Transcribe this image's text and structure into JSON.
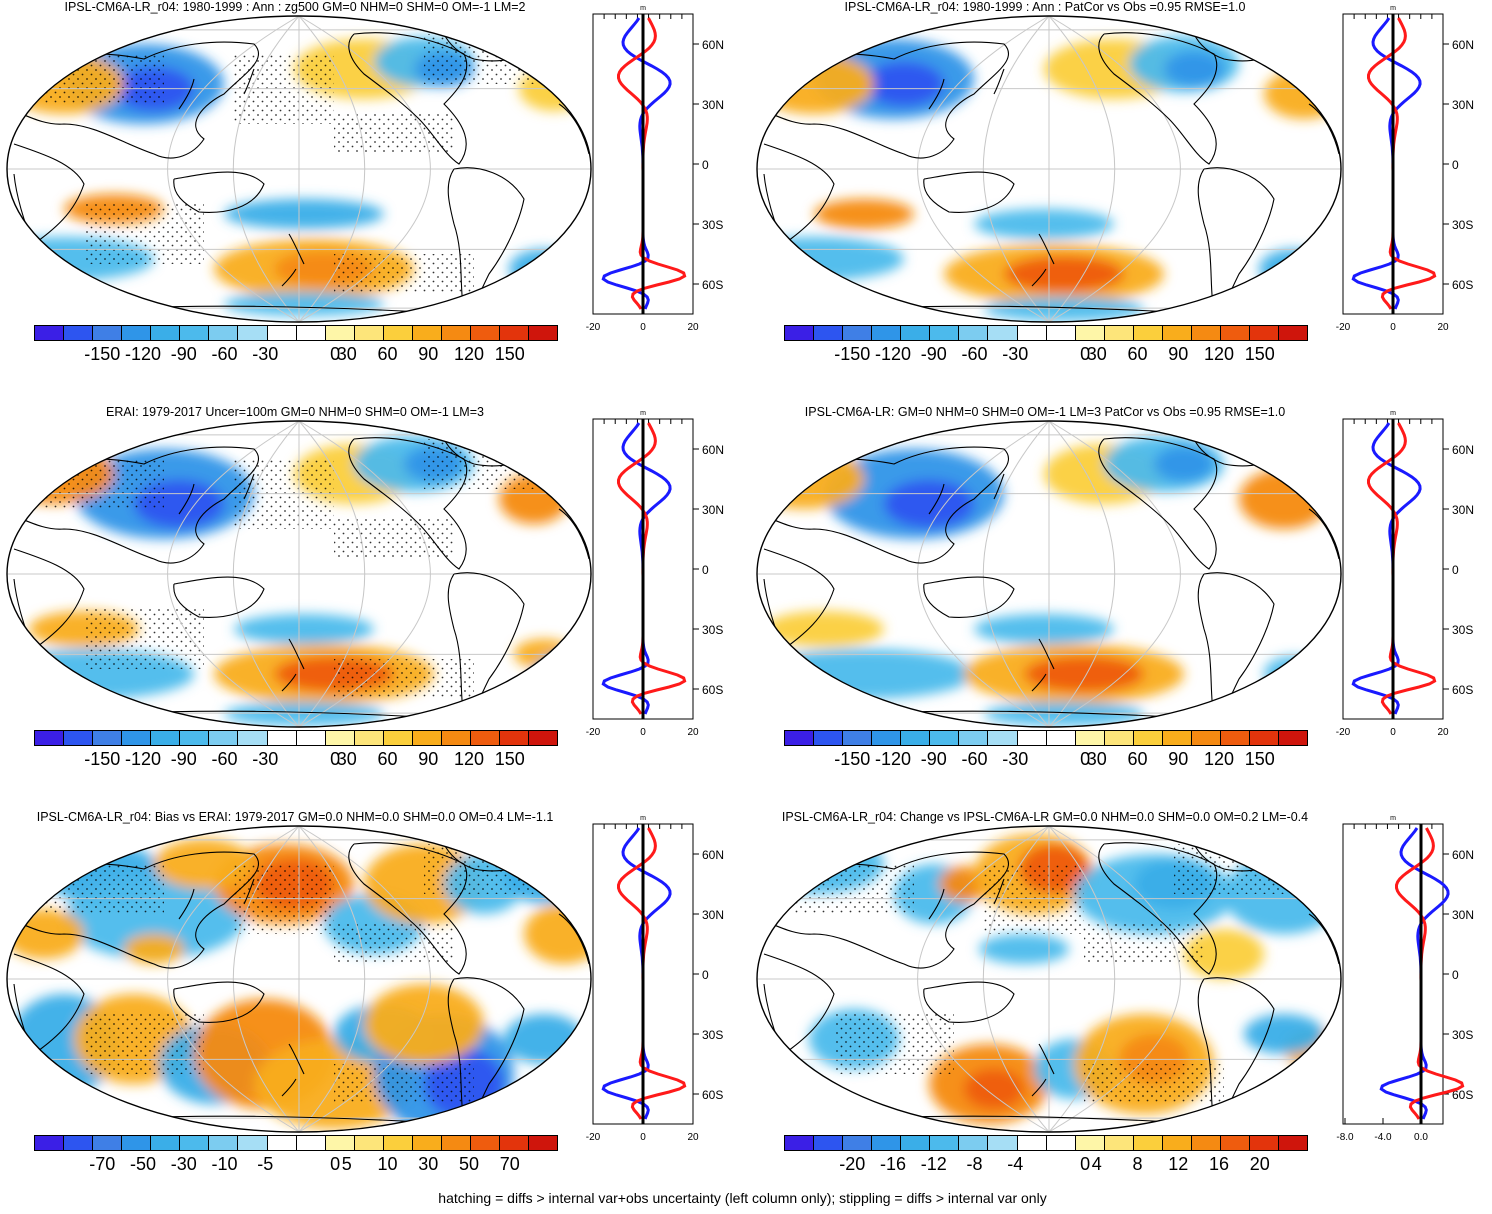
{
  "colors": {
    "neg": [
      "#3b1fe6",
      "#2d55f0",
      "#3f7fe6",
      "#2f95e8",
      "#3aaee8",
      "#4cbaec",
      "#7cccf0",
      "#a6def5"
    ],
    "pos": [
      "#fef6a8",
      "#fde57a",
      "#fbcf3c",
      "#f9ad1c",
      "#f58a12",
      "#ef5c0e",
      "#e3340c",
      "#cf150c"
    ],
    "zero": "#ffffff",
    "profile_model": "#ff1a1a",
    "profile_obs": "#1a1aff",
    "stipple": "#000000"
  },
  "scales": {
    "main": [
      "-150",
      "-120",
      "-90",
      "-60",
      "-30",
      "0",
      "30",
      "60",
      "90",
      "120",
      "150"
    ],
    "bias": [
      "-70",
      "-50",
      "-30",
      "-10",
      "-5",
      "0",
      "5",
      "10",
      "30",
      "50",
      "70"
    ],
    "change": [
      "-20",
      "-16",
      "-12",
      "-8",
      "-4",
      "0",
      "4",
      "8",
      "12",
      "16",
      "20"
    ]
  },
  "profile_common": {
    "unit": "m",
    "lat_labels": [
      "60N",
      "30N",
      "0",
      "30S",
      "60S"
    ]
  },
  "panels": [
    {
      "title": "IPSL-CM6A-LR_r04: 1980-1999 : Ann : zg500 GM=0 NHM=0 SHM=0 OM=-1 LM=2",
      "scale": "main",
      "variant": 0,
      "stipple": true,
      "xticks": [
        "-20",
        "0",
        "20"
      ]
    },
    {
      "title": "IPSL-CM6A-LR_r04: 1980-1999 : Ann : PatCor vs Obs =0.95 RMSE=1.0",
      "scale": "main",
      "variant": 1,
      "stipple": false,
      "xticks": [
        "-20",
        "0",
        "20"
      ]
    },
    {
      "title": "ERAI: 1979-2017 Uncer=100m GM=0 NHM=0 SHM=0 OM=-1 LM=3",
      "scale": "main",
      "variant": 2,
      "stipple": true,
      "xticks": [
        "-20",
        "0",
        "20"
      ]
    },
    {
      "title": "IPSL-CM6A-LR: GM=0 NHM=0 SHM=0 OM=-1 LM=3 PatCor vs Obs =0.95 RMSE=1.0",
      "scale": "main",
      "variant": 3,
      "stipple": false,
      "xticks": [
        "-20",
        "0",
        "20"
      ]
    },
    {
      "title": "IPSL-CM6A-LR_r04: Bias vs ERAI: 1979-2017 GM=0.0 NHM=0.0 SHM=0.0 OM=0.4 LM=-1.1",
      "scale": "bias",
      "variant": 4,
      "stipple": true,
      "xticks": [
        "-20",
        "0",
        "20"
      ]
    },
    {
      "title": "IPSL-CM6A-LR_r04: Change vs IPSL-CM6A-LR GM=0.0 NHM=0.0 SHM=0.0 OM=0.2 LM=-0.4",
      "scale": "change",
      "variant": 5,
      "stipple": true,
      "xticks": [
        "-8.0",
        "-4.0",
        "0.0"
      ]
    }
  ],
  "footer": "hatching = diffs > internal var+obs uncertainty (left column only); stippling = diffs > internal var only"
}
